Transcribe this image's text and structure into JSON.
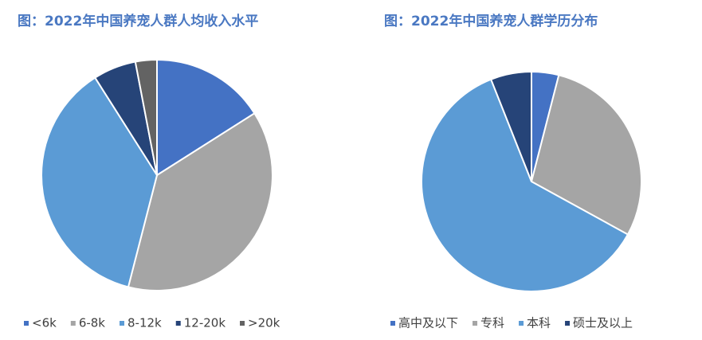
{
  "chart_data": [
    {
      "type": "pie",
      "title": "图：2022年中国养宠人群人均收入水平",
      "categories": [
        "<6k",
        "6-8k",
        "8-12k",
        "12-20k",
        ">20k"
      ],
      "values": [
        16,
        38,
        37,
        6,
        3
      ],
      "colors": [
        "#4472c4",
        "#a5a5a5",
        "#5b9bd5",
        "#264478",
        "#636363"
      ]
    },
    {
      "type": "pie",
      "title": "图：2022年中国养宠人群学历分布",
      "categories": [
        "高中及以下",
        "专科",
        "本科",
        "硕士及以上"
      ],
      "values": [
        4,
        29,
        61,
        6
      ],
      "colors": [
        "#4472c4",
        "#a5a5a5",
        "#5b9bd5",
        "#264478"
      ]
    }
  ]
}
